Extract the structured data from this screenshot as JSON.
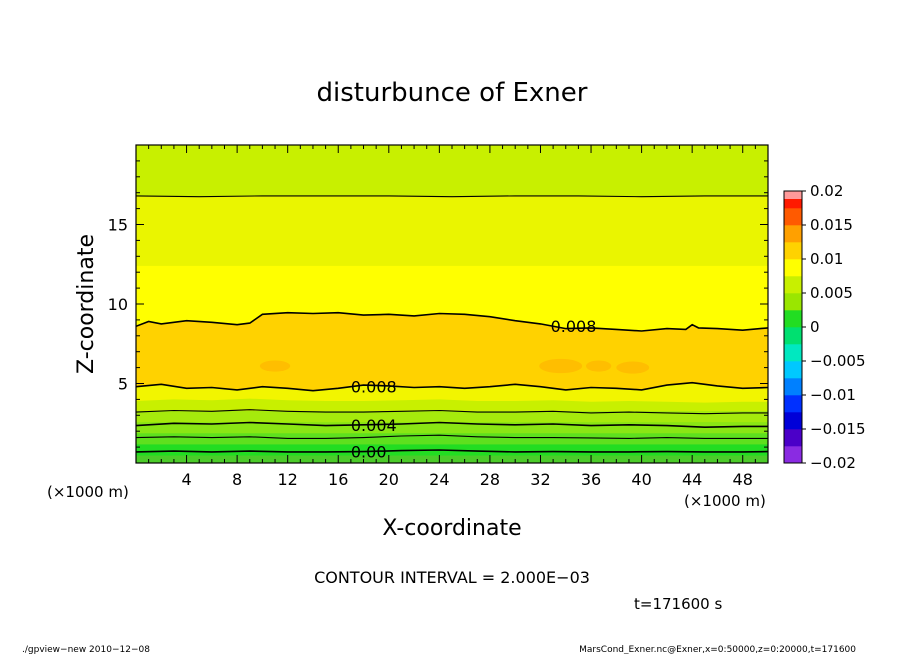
{
  "chart_data": {
    "type": "heatmap",
    "title": "disturbunce of Exner",
    "xlabel": "X-coordinate",
    "ylabel": "Z-coordinate",
    "x_unit": "(×1000 m)",
    "y_unit": "(×1000 m)",
    "xlim": [
      0,
      50
    ],
    "ylim": [
      0,
      20
    ],
    "x_ticks": [
      4,
      8,
      12,
      16,
      20,
      24,
      28,
      32,
      36,
      40,
      44,
      48
    ],
    "y_ticks": [
      5,
      10,
      15
    ],
    "colorbar": {
      "range": [
        -0.02,
        0.02
      ],
      "labels": [
        "0.02",
        "0.015",
        "0.01",
        "0.005",
        "0",
        "−0.005",
        "−0.01",
        "−0.015",
        "−0.02"
      ],
      "bands": [
        {
          "from": -0.02,
          "to": -0.0175,
          "color": "#8a2be2"
        },
        {
          "from": -0.0175,
          "to": -0.015,
          "color": "#4b00c8"
        },
        {
          "from": -0.015,
          "to": -0.0125,
          "color": "#0000d8"
        },
        {
          "from": -0.0125,
          "to": -0.01,
          "color": "#0030ff"
        },
        {
          "from": -0.01,
          "to": -0.0075,
          "color": "#0080ff"
        },
        {
          "from": -0.0075,
          "to": -0.005,
          "color": "#00c8ff"
        },
        {
          "from": -0.005,
          "to": -0.0025,
          "color": "#00e8c0"
        },
        {
          "from": -0.0025,
          "to": 0.0,
          "color": "#00e070"
        },
        {
          "from": 0.0,
          "to": 0.0025,
          "color": "#22dd22"
        },
        {
          "from": 0.0025,
          "to": 0.005,
          "color": "#9ae600"
        },
        {
          "from": 0.005,
          "to": 0.0075,
          "color": "#c8f000"
        },
        {
          "from": 0.0075,
          "to": 0.01,
          "color": "#ffff00"
        },
        {
          "from": 0.01,
          "to": 0.0125,
          "color": "#ffd200"
        },
        {
          "from": 0.0125,
          "to": 0.015,
          "color": "#ffa000"
        },
        {
          "from": 0.015,
          "to": 0.0175,
          "color": "#ff5a00"
        },
        {
          "from": 0.0175,
          "to": 0.02,
          "color": "#ff1a00"
        }
      ]
    },
    "field_layers": [
      {
        "z_from": 0.0,
        "z_to": 0.5,
        "value": 0.0005,
        "color": "#4ccc2a"
      },
      {
        "z_from": 0.5,
        "z_to": 1.2,
        "value": 0.0015,
        "color": "#22dd22"
      },
      {
        "z_from": 1.2,
        "z_to": 1.9,
        "value": 0.0025,
        "color": "#5ee01e"
      },
      {
        "z_from": 1.9,
        "z_to": 2.6,
        "value": 0.0035,
        "color": "#8ae614"
      },
      {
        "z_from": 2.6,
        "z_to": 3.3,
        "value": 0.0045,
        "color": "#a6ea0c"
      },
      {
        "z_from": 3.3,
        "z_to": 4.1,
        "value": 0.0055,
        "color": "#c8f000"
      },
      {
        "z_from": 4.1,
        "z_to": 4.8,
        "value": 0.007,
        "color": "#f0f500"
      },
      {
        "z_from": 4.8,
        "z_to": 8.6,
        "value": 0.009,
        "color": "#ffd200"
      },
      {
        "z_from": 8.6,
        "z_to": 12.4,
        "value": 0.0075,
        "color": "#ffff00"
      },
      {
        "z_from": 12.4,
        "z_to": 16.8,
        "value": 0.006,
        "color": "#eaf500"
      },
      {
        "z_from": 16.8,
        "z_to": 20.0,
        "value": 0.0045,
        "color": "#c8f000"
      }
    ],
    "warm_patches": [
      {
        "x": 11.0,
        "z": 6.1,
        "rx": 1.2,
        "rz": 0.35,
        "color": "#ffbe00"
      },
      {
        "x": 33.6,
        "z": 6.1,
        "rx": 1.7,
        "rz": 0.45,
        "color": "#ffbe00"
      },
      {
        "x": 36.6,
        "z": 6.1,
        "rx": 1.0,
        "rz": 0.35,
        "color": "#ffbe00"
      },
      {
        "x": 39.3,
        "z": 6.0,
        "rx": 1.3,
        "rz": 0.38,
        "color": "#ffbe00"
      }
    ],
    "contours": [
      {
        "level": 0.0,
        "label": "0.00",
        "label_x": 17.0,
        "x": [
          0,
          3,
          6,
          9,
          12,
          15,
          18,
          21,
          24,
          27,
          30,
          33,
          36,
          39,
          42,
          45,
          48,
          50
        ],
        "z": [
          0.7,
          0.75,
          0.7,
          0.75,
          0.7,
          0.7,
          0.72,
          0.78,
          0.82,
          0.75,
          0.7,
          0.72,
          0.7,
          0.7,
          0.72,
          0.7,
          0.7,
          0.72
        ]
      },
      {
        "level": 0.002,
        "label": "",
        "label_x": 0,
        "x": [
          0,
          3,
          6,
          9,
          12,
          15,
          18,
          21,
          24,
          27,
          30,
          33,
          36,
          39,
          42,
          45,
          48,
          50
        ],
        "z": [
          1.6,
          1.65,
          1.6,
          1.65,
          1.55,
          1.55,
          1.6,
          1.7,
          1.75,
          1.65,
          1.6,
          1.6,
          1.58,
          1.55,
          1.6,
          1.55,
          1.55,
          1.55
        ]
      },
      {
        "level": 0.004,
        "label": "0.004",
        "label_x": 17.0,
        "x": [
          0,
          3,
          6,
          9,
          12,
          15,
          18,
          21,
          24,
          27,
          30,
          33,
          36,
          39,
          42,
          45,
          48,
          50
        ],
        "z": [
          2.35,
          2.5,
          2.45,
          2.55,
          2.45,
          2.35,
          2.4,
          2.45,
          2.55,
          2.45,
          2.4,
          2.45,
          2.35,
          2.4,
          2.35,
          2.25,
          2.3,
          2.3
        ]
      },
      {
        "level": 0.006,
        "label": "",
        "label_x": 0,
        "x": [
          0,
          3,
          6,
          9,
          12,
          15,
          18,
          21,
          24,
          27,
          30,
          33,
          36,
          39,
          42,
          45,
          48,
          50
        ],
        "z": [
          3.2,
          3.3,
          3.25,
          3.35,
          3.25,
          3.2,
          3.2,
          3.25,
          3.3,
          3.2,
          3.2,
          3.25,
          3.15,
          3.2,
          3.15,
          3.1,
          3.15,
          3.15
        ]
      },
      {
        "level": 0.008,
        "label": "0.008",
        "label_x": 17.0,
        "x": [
          0,
          2,
          4,
          6,
          8,
          10,
          12,
          14,
          16,
          18,
          20,
          22,
          24,
          26,
          28,
          30,
          32,
          34,
          36,
          38,
          40,
          42,
          44,
          46,
          48,
          50
        ],
        "z": [
          4.8,
          4.95,
          4.7,
          4.75,
          4.6,
          4.8,
          4.7,
          4.55,
          4.7,
          4.9,
          4.85,
          4.75,
          4.8,
          4.7,
          4.8,
          4.95,
          4.8,
          4.6,
          4.75,
          4.7,
          4.6,
          4.9,
          5.05,
          4.85,
          4.7,
          4.75
        ]
      },
      {
        "level": 0.008,
        "label": "0.008",
        "label_x": 32.8,
        "x": [
          0,
          1,
          2,
          4,
          6,
          8,
          9,
          10,
          12,
          14,
          16,
          18,
          20,
          22,
          24,
          26,
          28,
          30,
          32,
          34,
          36,
          38,
          40,
          42,
          43.5,
          44,
          44.5,
          46,
          48,
          50
        ],
        "z": [
          8.6,
          8.9,
          8.75,
          8.95,
          8.85,
          8.7,
          8.8,
          9.35,
          9.45,
          9.4,
          9.45,
          9.3,
          9.35,
          9.25,
          9.4,
          9.35,
          9.2,
          8.95,
          8.75,
          8.45,
          8.5,
          8.4,
          8.3,
          8.45,
          8.4,
          8.7,
          8.5,
          8.45,
          8.35,
          8.5
        ]
      },
      {
        "level": 0.006,
        "label": "",
        "label_x": 0,
        "x": [
          0,
          5,
          10,
          15,
          20,
          25,
          30,
          35,
          40,
          45,
          50
        ],
        "z": [
          16.8,
          16.75,
          16.8,
          16.8,
          16.8,
          16.75,
          16.8,
          16.8,
          16.75,
          16.8,
          16.8
        ]
      }
    ]
  },
  "annotations": {
    "contour_interval": "CONTOUR INTERVAL = 2.000E−03",
    "time": "t=171600 s",
    "footer_left": "./gpview−new  2010−12−08",
    "footer_right": "MarsCond_Exner.nc@Exner,x=0:50000,z=0:20000,t=171600"
  }
}
